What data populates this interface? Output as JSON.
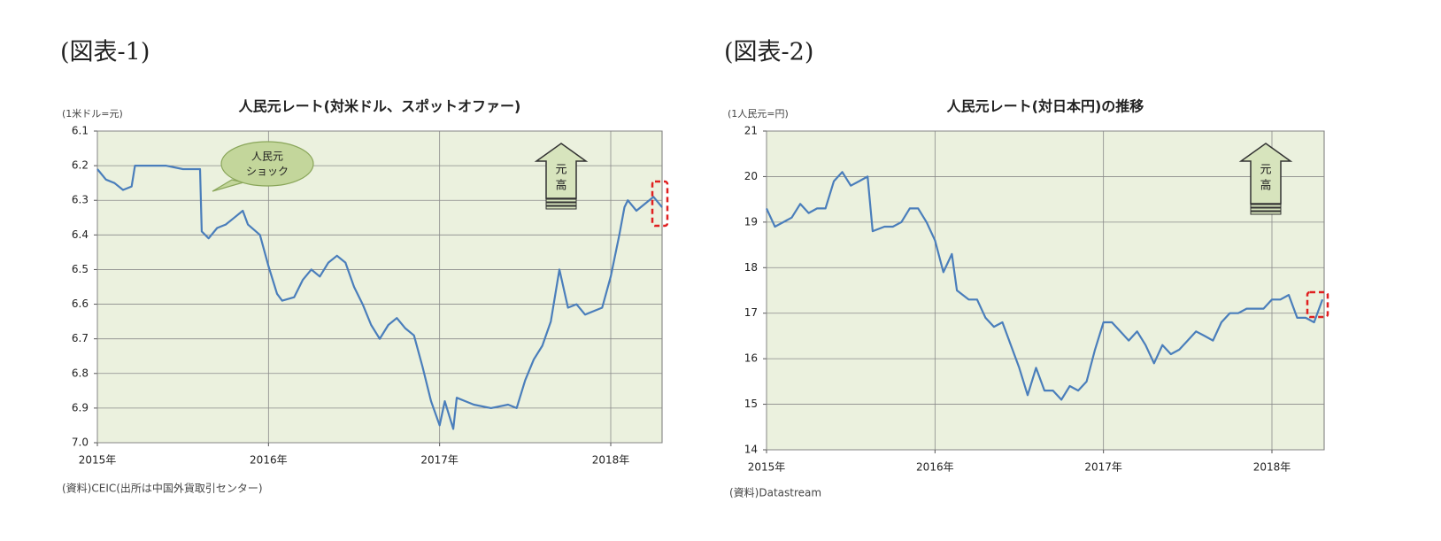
{
  "chart_data": [
    {
      "type": "line",
      "figure_label": "(図表-1)",
      "title": "人民元レート(対米ドル、スポットオファー)",
      "y_unit": "(1米ドル=元)",
      "source": "(資料)CEIC(出所は中国外貨取引センター)",
      "callout": [
        "人民元",
        "ショック"
      ],
      "arrow_label": [
        "元",
        "高"
      ],
      "color": "#4a7ebb",
      "plot_background": "#ebf1de",
      "grid": true,
      "y_inverted": true,
      "xlim": [
        2015,
        2018.3
      ],
      "ylim": [
        6.1,
        7.0
      ],
      "xticks": [
        {
          "value": 2015,
          "label": "2015年"
        },
        {
          "value": 2016,
          "label": "2016年"
        },
        {
          "value": 2017,
          "label": "2017年"
        },
        {
          "value": 2018,
          "label": "2018年"
        }
      ],
      "yticks": [
        6.1,
        6.2,
        6.3,
        6.4,
        6.5,
        6.6,
        6.7,
        6.8,
        6.9,
        {
          "value": 7,
          "label": "7.0"
        }
      ],
      "x": [
        2015.0,
        2015.05,
        2015.1,
        2015.15,
        2015.2,
        2015.22,
        2015.3,
        2015.4,
        2015.5,
        2015.6,
        2015.61,
        2015.65,
        2015.7,
        2015.75,
        2015.8,
        2015.85,
        2015.88,
        2015.95,
        2016.0,
        2016.05,
        2016.08,
        2016.15,
        2016.2,
        2016.25,
        2016.3,
        2016.35,
        2016.4,
        2016.45,
        2016.5,
        2016.55,
        2016.6,
        2016.65,
        2016.7,
        2016.75,
        2016.8,
        2016.85,
        2016.9,
        2016.95,
        2017.0,
        2017.03,
        2017.08,
        2017.1,
        2017.15,
        2017.2,
        2017.3,
        2017.4,
        2017.45,
        2017.5,
        2017.55,
        2017.6,
        2017.65,
        2017.7,
        2017.75,
        2017.8,
        2017.85,
        2017.9,
        2017.95,
        2018.0,
        2018.05,
        2018.08,
        2018.1,
        2018.15,
        2018.2,
        2018.25,
        2018.3
      ],
      "values": [
        6.21,
        6.24,
        6.25,
        6.27,
        6.26,
        6.2,
        6.2,
        6.2,
        6.21,
        6.21,
        6.39,
        6.41,
        6.38,
        6.37,
        6.35,
        6.33,
        6.37,
        6.4,
        6.49,
        6.57,
        6.59,
        6.58,
        6.53,
        6.5,
        6.52,
        6.48,
        6.46,
        6.48,
        6.55,
        6.6,
        6.66,
        6.7,
        6.66,
        6.64,
        6.67,
        6.69,
        6.78,
        6.88,
        6.95,
        6.88,
        6.96,
        6.87,
        6.88,
        6.89,
        6.9,
        6.89,
        6.9,
        6.82,
        6.76,
        6.72,
        6.65,
        6.5,
        6.61,
        6.6,
        6.63,
        6.62,
        6.61,
        6.52,
        6.4,
        6.32,
        6.3,
        6.33,
        6.31,
        6.29,
        6.32
      ]
    },
    {
      "type": "line",
      "figure_label": "(図表-2)",
      "title": "人民元レート(対日本円)の推移",
      "y_unit": "(1人民元=円)",
      "source": "(資料)Datastream",
      "arrow_label": [
        "元",
        "高"
      ],
      "color": "#4a7ebb",
      "plot_background": "#ebf1de",
      "grid": true,
      "y_inverted": false,
      "xlim": [
        2015,
        2018.31
      ],
      "ylim": [
        14,
        21
      ],
      "xticks": [
        {
          "value": 2015,
          "label": "2015年"
        },
        {
          "value": 2016,
          "label": "2016年"
        },
        {
          "value": 2017,
          "label": "2017年"
        },
        {
          "value": 2018,
          "label": "2018年"
        }
      ],
      "yticks": [
        14,
        15,
        16,
        17,
        18,
        19,
        20,
        21
      ],
      "x": [
        2015.0,
        2015.05,
        2015.1,
        2015.15,
        2015.2,
        2015.25,
        2015.3,
        2015.35,
        2015.4,
        2015.45,
        2015.5,
        2015.55,
        2015.6,
        2015.63,
        2015.7,
        2015.75,
        2015.8,
        2015.85,
        2015.9,
        2015.95,
        2016.0,
        2016.05,
        2016.1,
        2016.13,
        2016.2,
        2016.25,
        2016.3,
        2016.35,
        2016.4,
        2016.45,
        2016.5,
        2016.55,
        2016.6,
        2016.65,
        2016.7,
        2016.75,
        2016.8,
        2016.85,
        2016.9,
        2016.95,
        2017.0,
        2017.05,
        2017.1,
        2017.15,
        2017.2,
        2017.25,
        2017.3,
        2017.35,
        2017.4,
        2017.45,
        2017.5,
        2017.55,
        2017.6,
        2017.65,
        2017.7,
        2017.75,
        2017.8,
        2017.85,
        2017.9,
        2017.95,
        2018.0,
        2018.05,
        2018.1,
        2018.15,
        2018.2,
        2018.25,
        2018.3
      ],
      "values": [
        19.3,
        18.9,
        19.0,
        19.1,
        19.4,
        19.2,
        19.3,
        19.3,
        19.9,
        20.1,
        19.8,
        19.9,
        20.0,
        18.8,
        18.9,
        18.9,
        19.0,
        19.3,
        19.3,
        19.0,
        18.6,
        17.9,
        18.3,
        17.5,
        17.3,
        17.3,
        16.9,
        16.7,
        16.8,
        16.3,
        15.8,
        15.2,
        15.8,
        15.3,
        15.3,
        15.1,
        15.4,
        15.3,
        15.5,
        16.2,
        16.8,
        16.8,
        16.6,
        16.4,
        16.6,
        16.3,
        15.9,
        16.3,
        16.1,
        16.2,
        16.4,
        16.6,
        16.5,
        16.4,
        16.8,
        17.0,
        17.0,
        17.1,
        17.1,
        17.1,
        17.3,
        17.3,
        17.4,
        16.9,
        16.9,
        16.8,
        17.3
      ]
    }
  ]
}
